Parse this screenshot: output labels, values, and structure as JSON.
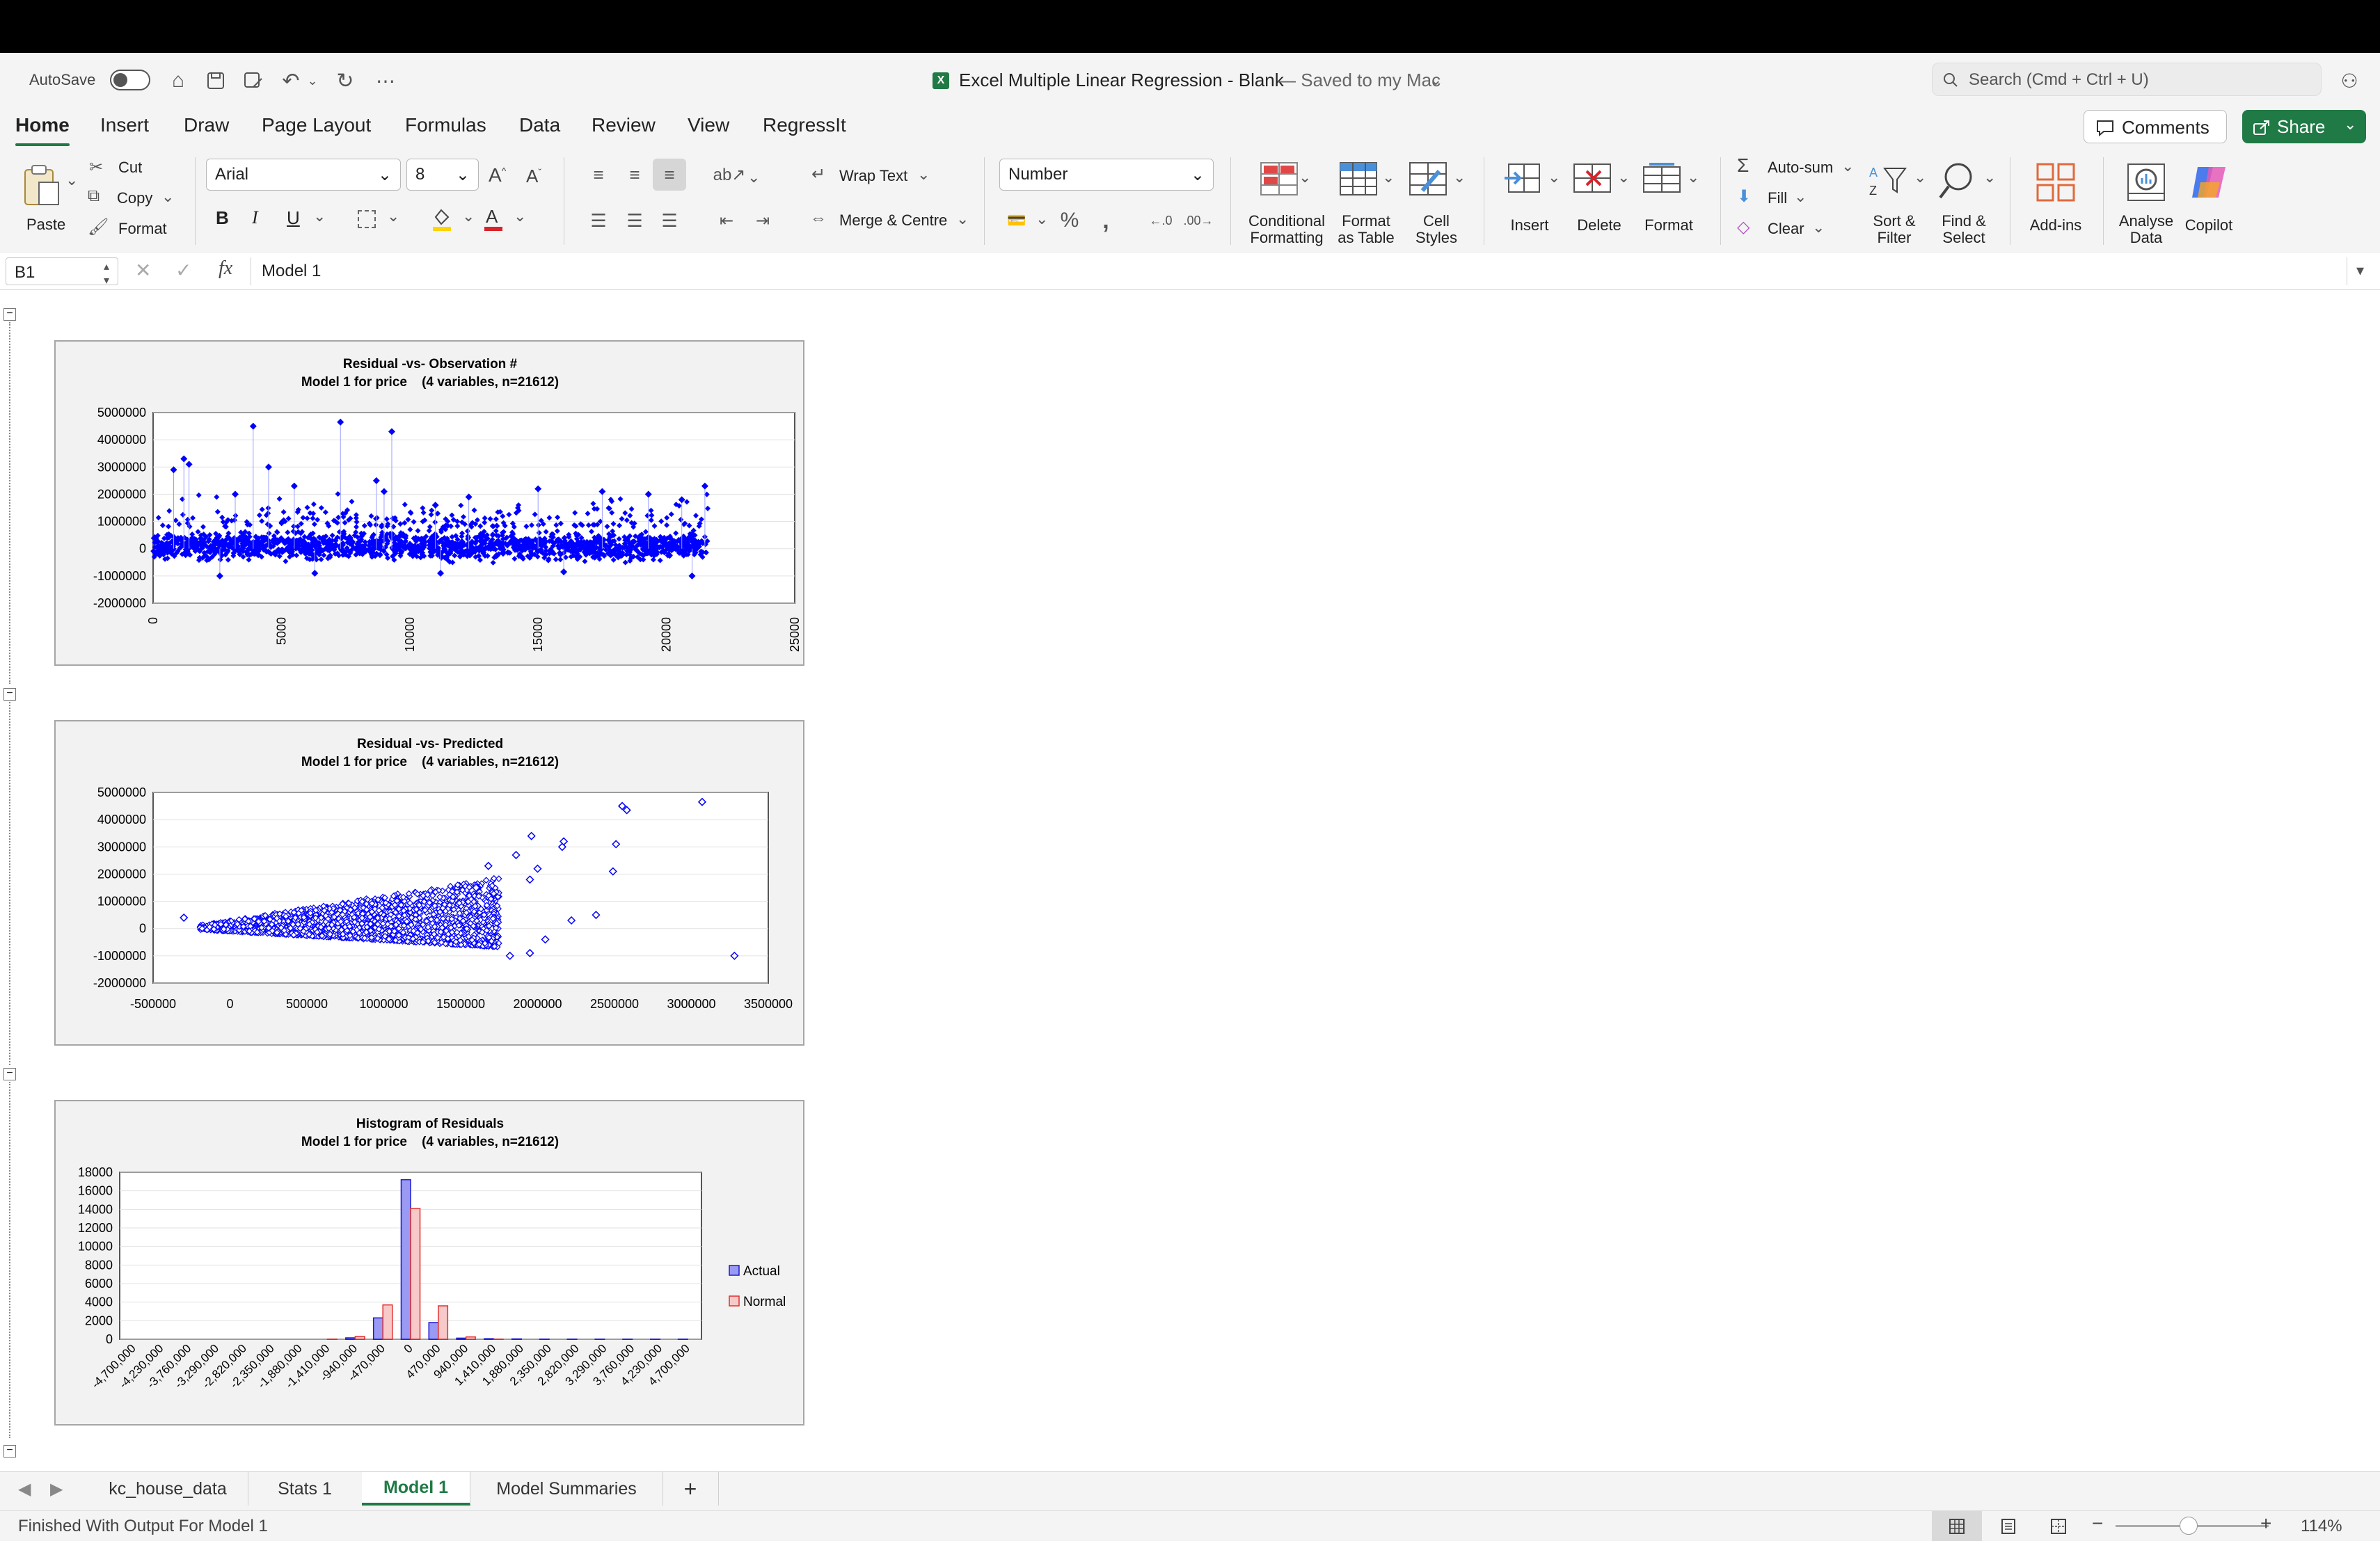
{
  "window": {
    "title": "Excel Multiple Linear Regression - Blank",
    "saved_status": "— Saved to my Mac",
    "autosave_label": "AutoSave"
  },
  "search": {
    "placeholder": "Search (Cmd + Ctrl + U)"
  },
  "ribbon_tabs": [
    "Home",
    "Insert",
    "Draw",
    "Page Layout",
    "Formulas",
    "Data",
    "Review",
    "View",
    "RegressIt"
  ],
  "active_tab": "Home",
  "buttons": {
    "comments": "Comments",
    "share": "Share"
  },
  "clipboard": {
    "paste": "Paste",
    "cut": "Cut",
    "copy": "Copy",
    "format": "Format"
  },
  "font": {
    "name": "Arial",
    "size": "8"
  },
  "alignment": {
    "wrap_text": "Wrap Text",
    "merge_centre": "Merge & Centre"
  },
  "number": {
    "format": "Number"
  },
  "styles": {
    "conditional_formatting": "Conditional Formatting",
    "format_as_table": "Format as Table",
    "cell_styles": "Cell Styles"
  },
  "cells": {
    "insert": "Insert",
    "delete": "Delete",
    "format": "Format"
  },
  "editing": {
    "auto_sum": "Auto-sum",
    "fill": "Fill",
    "clear": "Clear",
    "sort_filter": "Sort & Filter",
    "find_select": "Find & Select"
  },
  "addins": {
    "addins": "Add-ins",
    "analyse_data": "Analyse Data",
    "copilot": "Copilot"
  },
  "formula_bar": {
    "cell_ref": "B1",
    "fx": "fx",
    "content": "Model 1"
  },
  "sheet_tabs": [
    "kc_house_data",
    "Stats 1",
    "Model 1",
    "Model Summaries"
  ],
  "active_sheet": "Model 1",
  "status_bar": {
    "message": "Finished With Output For Model 1",
    "zoom": "114%"
  },
  "colors": {
    "accent": "#1f7a45",
    "series_blue": "#0000ff",
    "normal_red": "#e06666"
  },
  "chart_data": [
    {
      "type": "scatter",
      "title": "Residual -vs- Observation #",
      "subtitle": "Model 1 for price    (4 variables, n=21612)",
      "xlim": [
        0,
        25000
      ],
      "ylim": [
        -2000000,
        5000000
      ],
      "x_ticks": [
        "0",
        "5000",
        "10000",
        "15000",
        "20000",
        "25000"
      ],
      "y_ticks": [
        "5000000",
        "4000000",
        "3000000",
        "2000000",
        "1000000",
        "0",
        "-1000000",
        "-2000000"
      ],
      "band": {
        "x_range": [
          0,
          21612
        ],
        "y_range": [
          -600000,
          800000
        ]
      },
      "points": [
        {
          "x": 800,
          "y": 2900000
        },
        {
          "x": 1200,
          "y": 3300000
        },
        {
          "x": 1400,
          "y": 3100000
        },
        {
          "x": 3900,
          "y": 4500000
        },
        {
          "x": 4500,
          "y": 3000000
        },
        {
          "x": 5500,
          "y": 2300000
        },
        {
          "x": 7300,
          "y": 4650000
        },
        {
          "x": 8700,
          "y": 2500000
        },
        {
          "x": 9300,
          "y": 4300000
        },
        {
          "x": 9000,
          "y": 2100000
        },
        {
          "x": 12300,
          "y": 1900000
        },
        {
          "x": 15000,
          "y": 2200000
        },
        {
          "x": 17500,
          "y": 2100000
        },
        {
          "x": 19300,
          "y": 2000000
        },
        {
          "x": 20600,
          "y": 1800000
        },
        {
          "x": 21500,
          "y": 2300000
        },
        {
          "x": 3200,
          "y": 2000000
        },
        {
          "x": 11000,
          "y": 1600000
        },
        {
          "x": 2600,
          "y": -1000000
        },
        {
          "x": 11200,
          "y": -900000
        },
        {
          "x": 21000,
          "y": -1000000
        },
        {
          "x": 6300,
          "y": -900000
        },
        {
          "x": 16000,
          "y": -850000
        }
      ]
    },
    {
      "type": "scatter",
      "title": "Residual -vs- Predicted",
      "subtitle": "Model 1 for price    (4 variables, n=21612)",
      "xlim": [
        -500000,
        3500000
      ],
      "ylim": [
        -2000000,
        5000000
      ],
      "x_ticks": [
        "-500000",
        "0",
        "500000",
        "1000000",
        "1500000",
        "2000000",
        "2500000",
        "3000000",
        "3500000"
      ],
      "y_ticks": [
        "5000000",
        "4000000",
        "3000000",
        "2000000",
        "1000000",
        "0",
        "-1000000",
        "-2000000"
      ],
      "points": [
        {
          "x": -300000,
          "y": 400000
        },
        {
          "x": 2550000,
          "y": 4500000
        },
        {
          "x": 2580000,
          "y": 4350000
        },
        {
          "x": 3070000,
          "y": 4650000
        },
        {
          "x": 3280000,
          "y": -1000000
        },
        {
          "x": 2170000,
          "y": 3200000
        },
        {
          "x": 2160000,
          "y": 3000000
        },
        {
          "x": 2510000,
          "y": 3100000
        },
        {
          "x": 2490000,
          "y": 2100000
        },
        {
          "x": 1960000,
          "y": 3400000
        },
        {
          "x": 1950000,
          "y": 1800000
        },
        {
          "x": 2000000,
          "y": 2200000
        },
        {
          "x": 2380000,
          "y": 500000
        },
        {
          "x": 2220000,
          "y": 300000
        },
        {
          "x": 2050000,
          "y": -400000
        },
        {
          "x": 1950000,
          "y": -900000
        },
        {
          "x": 1820000,
          "y": -1000000
        },
        {
          "x": 1860000,
          "y": 2700000
        },
        {
          "x": 1680000,
          "y": 2300000
        },
        {
          "x": 1600000,
          "y": 1500000
        }
      ]
    },
    {
      "type": "bar",
      "title": "Histogram of Residuals",
      "subtitle": "Model 1 for price    (4 variables, n=21612)",
      "categories": [
        "-4,700,000",
        "-4,230,000",
        "-3,760,000",
        "-3,290,000",
        "-2,820,000",
        "-2,350,000",
        "-1,880,000",
        "-1,410,000",
        "-940,000",
        "-470,000",
        "0",
        "470,000",
        "940,000",
        "1,410,000",
        "1,880,000",
        "2,350,000",
        "2,820,000",
        "3,290,000",
        "3,760,000",
        "4,230,000",
        "4,700,000"
      ],
      "series": [
        {
          "name": "Actual",
          "values": [
            0,
            0,
            0,
            0,
            0,
            0,
            0,
            0,
            150,
            2300,
            17200,
            1800,
            120,
            60,
            40,
            20,
            15,
            10,
            5,
            5,
            10
          ]
        },
        {
          "name": "Normal",
          "values": [
            0,
            0,
            0,
            0,
            0,
            0,
            0,
            20,
            300,
            3700,
            14100,
            3600,
            250,
            15,
            0,
            0,
            0,
            0,
            0,
            0,
            0
          ]
        }
      ],
      "ylim": [
        0,
        18000
      ],
      "y_ticks": [
        "18000",
        "16000",
        "14000",
        "12000",
        "10000",
        "8000",
        "6000",
        "4000",
        "2000",
        "0"
      ],
      "legend": "right"
    }
  ]
}
